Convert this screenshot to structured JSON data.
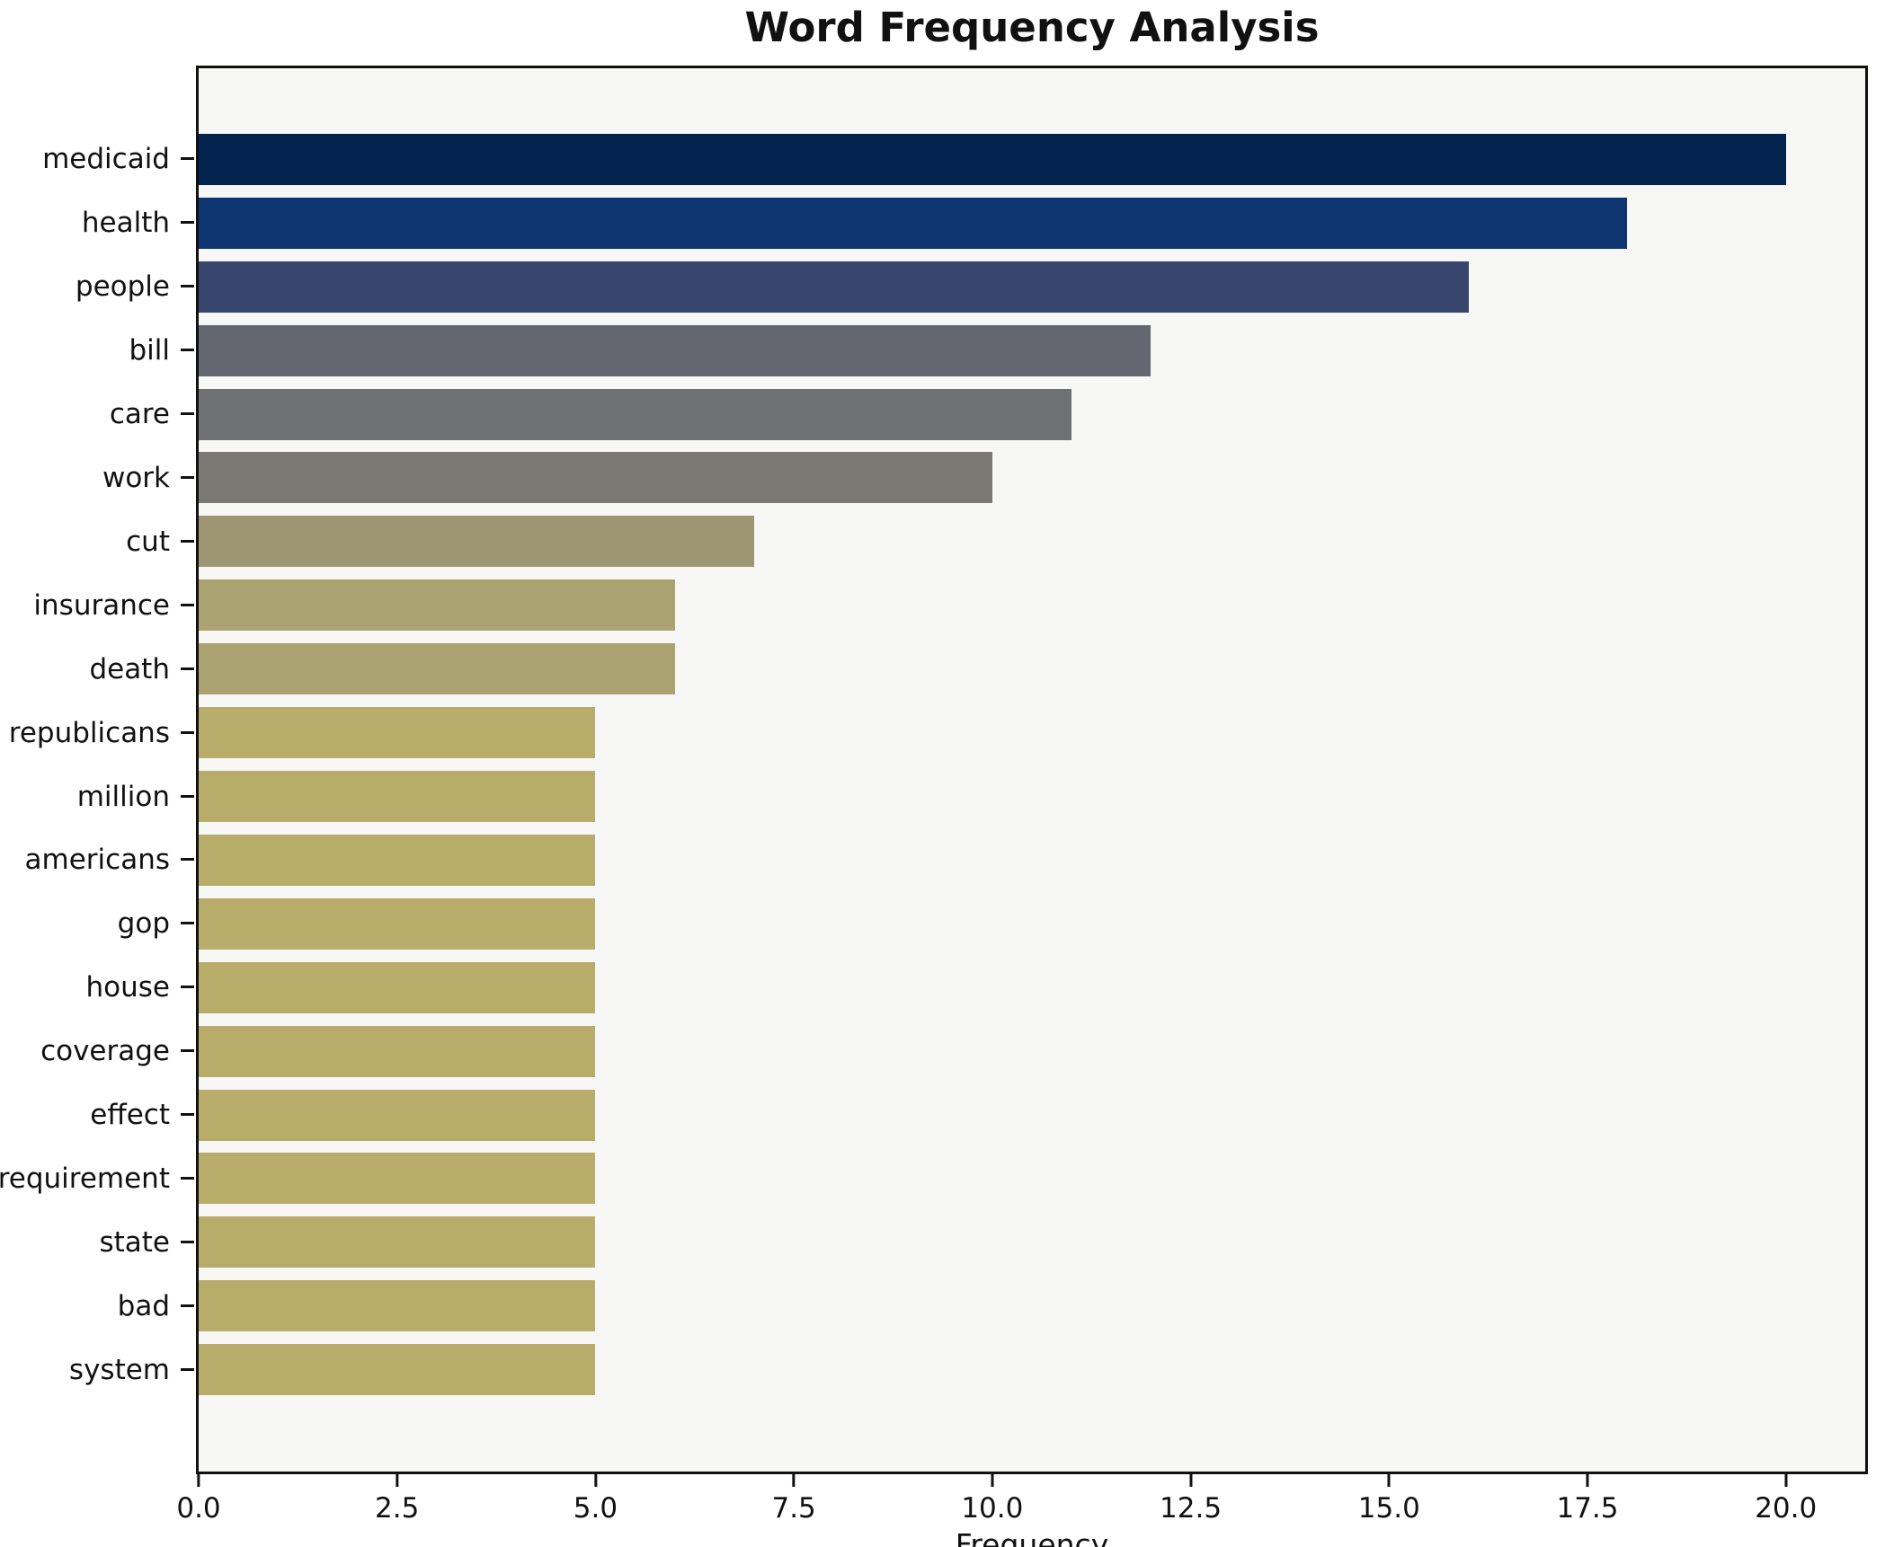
{
  "title": "Word Frequency Analysis",
  "colors": {
    "figure_bg": "#ffffff",
    "plot_bg": "#f7f7f6",
    "spine": "#111111",
    "text": "#111111"
  },
  "chart_data": {
    "type": "bar",
    "orientation": "horizontal",
    "title": "Word Frequency Analysis",
    "xlabel": "Frequency",
    "ylabel": "",
    "xlim": [
      0,
      21
    ],
    "grid": false,
    "legend": false,
    "x_ticks": [
      {
        "value": 0,
        "label": "0.0"
      },
      {
        "value": 2.5,
        "label": "2.5"
      },
      {
        "value": 5,
        "label": "5.0"
      },
      {
        "value": 7.5,
        "label": "7.5"
      },
      {
        "value": 10,
        "label": "10.0"
      },
      {
        "value": 12.5,
        "label": "12.5"
      },
      {
        "value": 15,
        "label": "15.0"
      },
      {
        "value": 17.5,
        "label": "17.5"
      },
      {
        "value": 20,
        "label": "20.0"
      }
    ],
    "categories": [
      "medicaid",
      "health",
      "people",
      "bill",
      "care",
      "work",
      "cut",
      "insurance",
      "death",
      "republicans",
      "million",
      "americans",
      "gop",
      "house",
      "coverage",
      "effect",
      "requirement",
      "state",
      "bad",
      "system"
    ],
    "values": [
      20,
      18,
      16,
      12,
      11,
      10,
      7,
      6,
      6,
      5,
      5,
      5,
      5,
      5,
      5,
      5,
      5,
      5,
      5,
      5
    ],
    "bar_colors": [
      "#01234e",
      "#0f3570",
      "#38466d",
      "#646670",
      "#707172",
      "#7a7973",
      "#9d9673",
      "#aba271",
      "#aba271",
      "#b7ac69",
      "#b7ac69",
      "#b7ac69",
      "#b7ac69",
      "#b7ac69",
      "#b7ac69",
      "#b7ac69",
      "#b7ac69",
      "#b7ac69",
      "#b7ac69",
      "#b7ac69"
    ]
  }
}
